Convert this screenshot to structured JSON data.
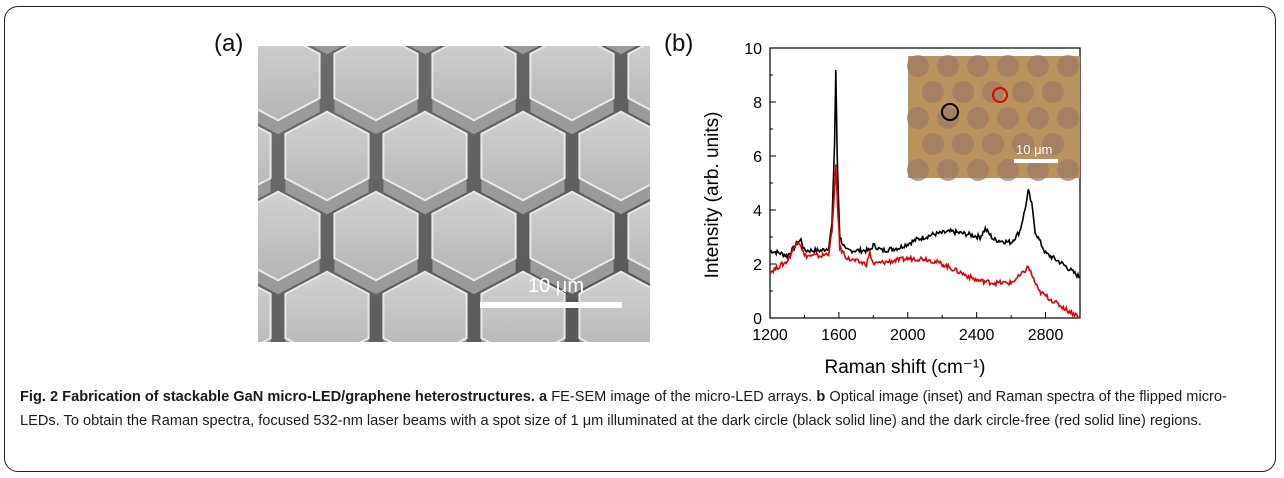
{
  "panels": {
    "a": {
      "label": "(a)",
      "scale_bar_text": "10 μm"
    },
    "b": {
      "label": "(b)",
      "inset_scale_bar_text": "10 μm"
    }
  },
  "chart_data": {
    "type": "line",
    "xlabel": "Raman shift (cm⁻¹)",
    "ylabel": "Intensity (arb. units)",
    "xlim": [
      1200,
      3000
    ],
    "ylim": [
      0,
      10
    ],
    "xticks": [
      1200,
      1600,
      2000,
      2400,
      2800
    ],
    "yticks": [
      0,
      2,
      4,
      6,
      8,
      10
    ],
    "grid": false,
    "series": [
      {
        "color": "#000000",
        "points": [
          [
            1200,
            2.5
          ],
          [
            1260,
            2.4
          ],
          [
            1300,
            2.3
          ],
          [
            1340,
            2.6
          ],
          [
            1360,
            2.8
          ],
          [
            1380,
            2.9
          ],
          [
            1400,
            2.5
          ],
          [
            1450,
            2.5
          ],
          [
            1500,
            2.5
          ],
          [
            1540,
            2.6
          ],
          [
            1560,
            3.5
          ],
          [
            1575,
            6.5
          ],
          [
            1582,
            9.2
          ],
          [
            1590,
            6.0
          ],
          [
            1605,
            3.0
          ],
          [
            1640,
            2.5
          ],
          [
            1700,
            2.5
          ],
          [
            1780,
            2.5
          ],
          [
            1800,
            2.7
          ],
          [
            1850,
            2.5
          ],
          [
            1950,
            2.6
          ],
          [
            2050,
            2.9
          ],
          [
            2150,
            3.1
          ],
          [
            2250,
            3.2
          ],
          [
            2350,
            3.1
          ],
          [
            2420,
            3.0
          ],
          [
            2450,
            3.3
          ],
          [
            2500,
            2.9
          ],
          [
            2600,
            2.8
          ],
          [
            2650,
            3.2
          ],
          [
            2680,
            4.0
          ],
          [
            2700,
            4.7
          ],
          [
            2720,
            4.2
          ],
          [
            2740,
            3.2
          ],
          [
            2800,
            2.4
          ],
          [
            2900,
            2.0
          ],
          [
            3000,
            1.5
          ]
        ]
      },
      {
        "color": "#e00000",
        "points": [
          [
            1200,
            1.7
          ],
          [
            1250,
            1.9
          ],
          [
            1300,
            2.1
          ],
          [
            1340,
            2.6
          ],
          [
            1360,
            2.9
          ],
          [
            1380,
            2.7
          ],
          [
            1400,
            2.3
          ],
          [
            1450,
            2.3
          ],
          [
            1500,
            2.3
          ],
          [
            1540,
            2.4
          ],
          [
            1560,
            3.2
          ],
          [
            1575,
            4.8
          ],
          [
            1582,
            5.6
          ],
          [
            1590,
            4.5
          ],
          [
            1605,
            2.6
          ],
          [
            1650,
            2.2
          ],
          [
            1700,
            2.1
          ],
          [
            1760,
            2.0
          ],
          [
            1780,
            2.4
          ],
          [
            1800,
            2.0
          ],
          [
            1900,
            2.1
          ],
          [
            2000,
            2.2
          ],
          [
            2100,
            2.2
          ],
          [
            2200,
            2.0
          ],
          [
            2300,
            1.7
          ],
          [
            2400,
            1.4
          ],
          [
            2500,
            1.3
          ],
          [
            2600,
            1.3
          ],
          [
            2660,
            1.6
          ],
          [
            2700,
            1.9
          ],
          [
            2720,
            1.6
          ],
          [
            2760,
            1.0
          ],
          [
            2850,
            0.6
          ],
          [
            2950,
            0.2
          ],
          [
            3000,
            0.05
          ]
        ]
      }
    ]
  },
  "caption": {
    "bold": "Fig. 2 Fabrication of stackable GaN micro-LED/graphene heterostructures.",
    "a_letter": "a",
    "a_text": " FE-SEM image of the micro-LED arrays. ",
    "b_letter": "b",
    "b_text": " Optical image (inset) and Raman spectra of the flipped micro-LEDs. To obtain the Raman spectra, focused 532-nm laser beams with a spot size of 1 μm illuminated at the dark circle (black solid line) and the dark circle-free (red solid line) regions."
  }
}
